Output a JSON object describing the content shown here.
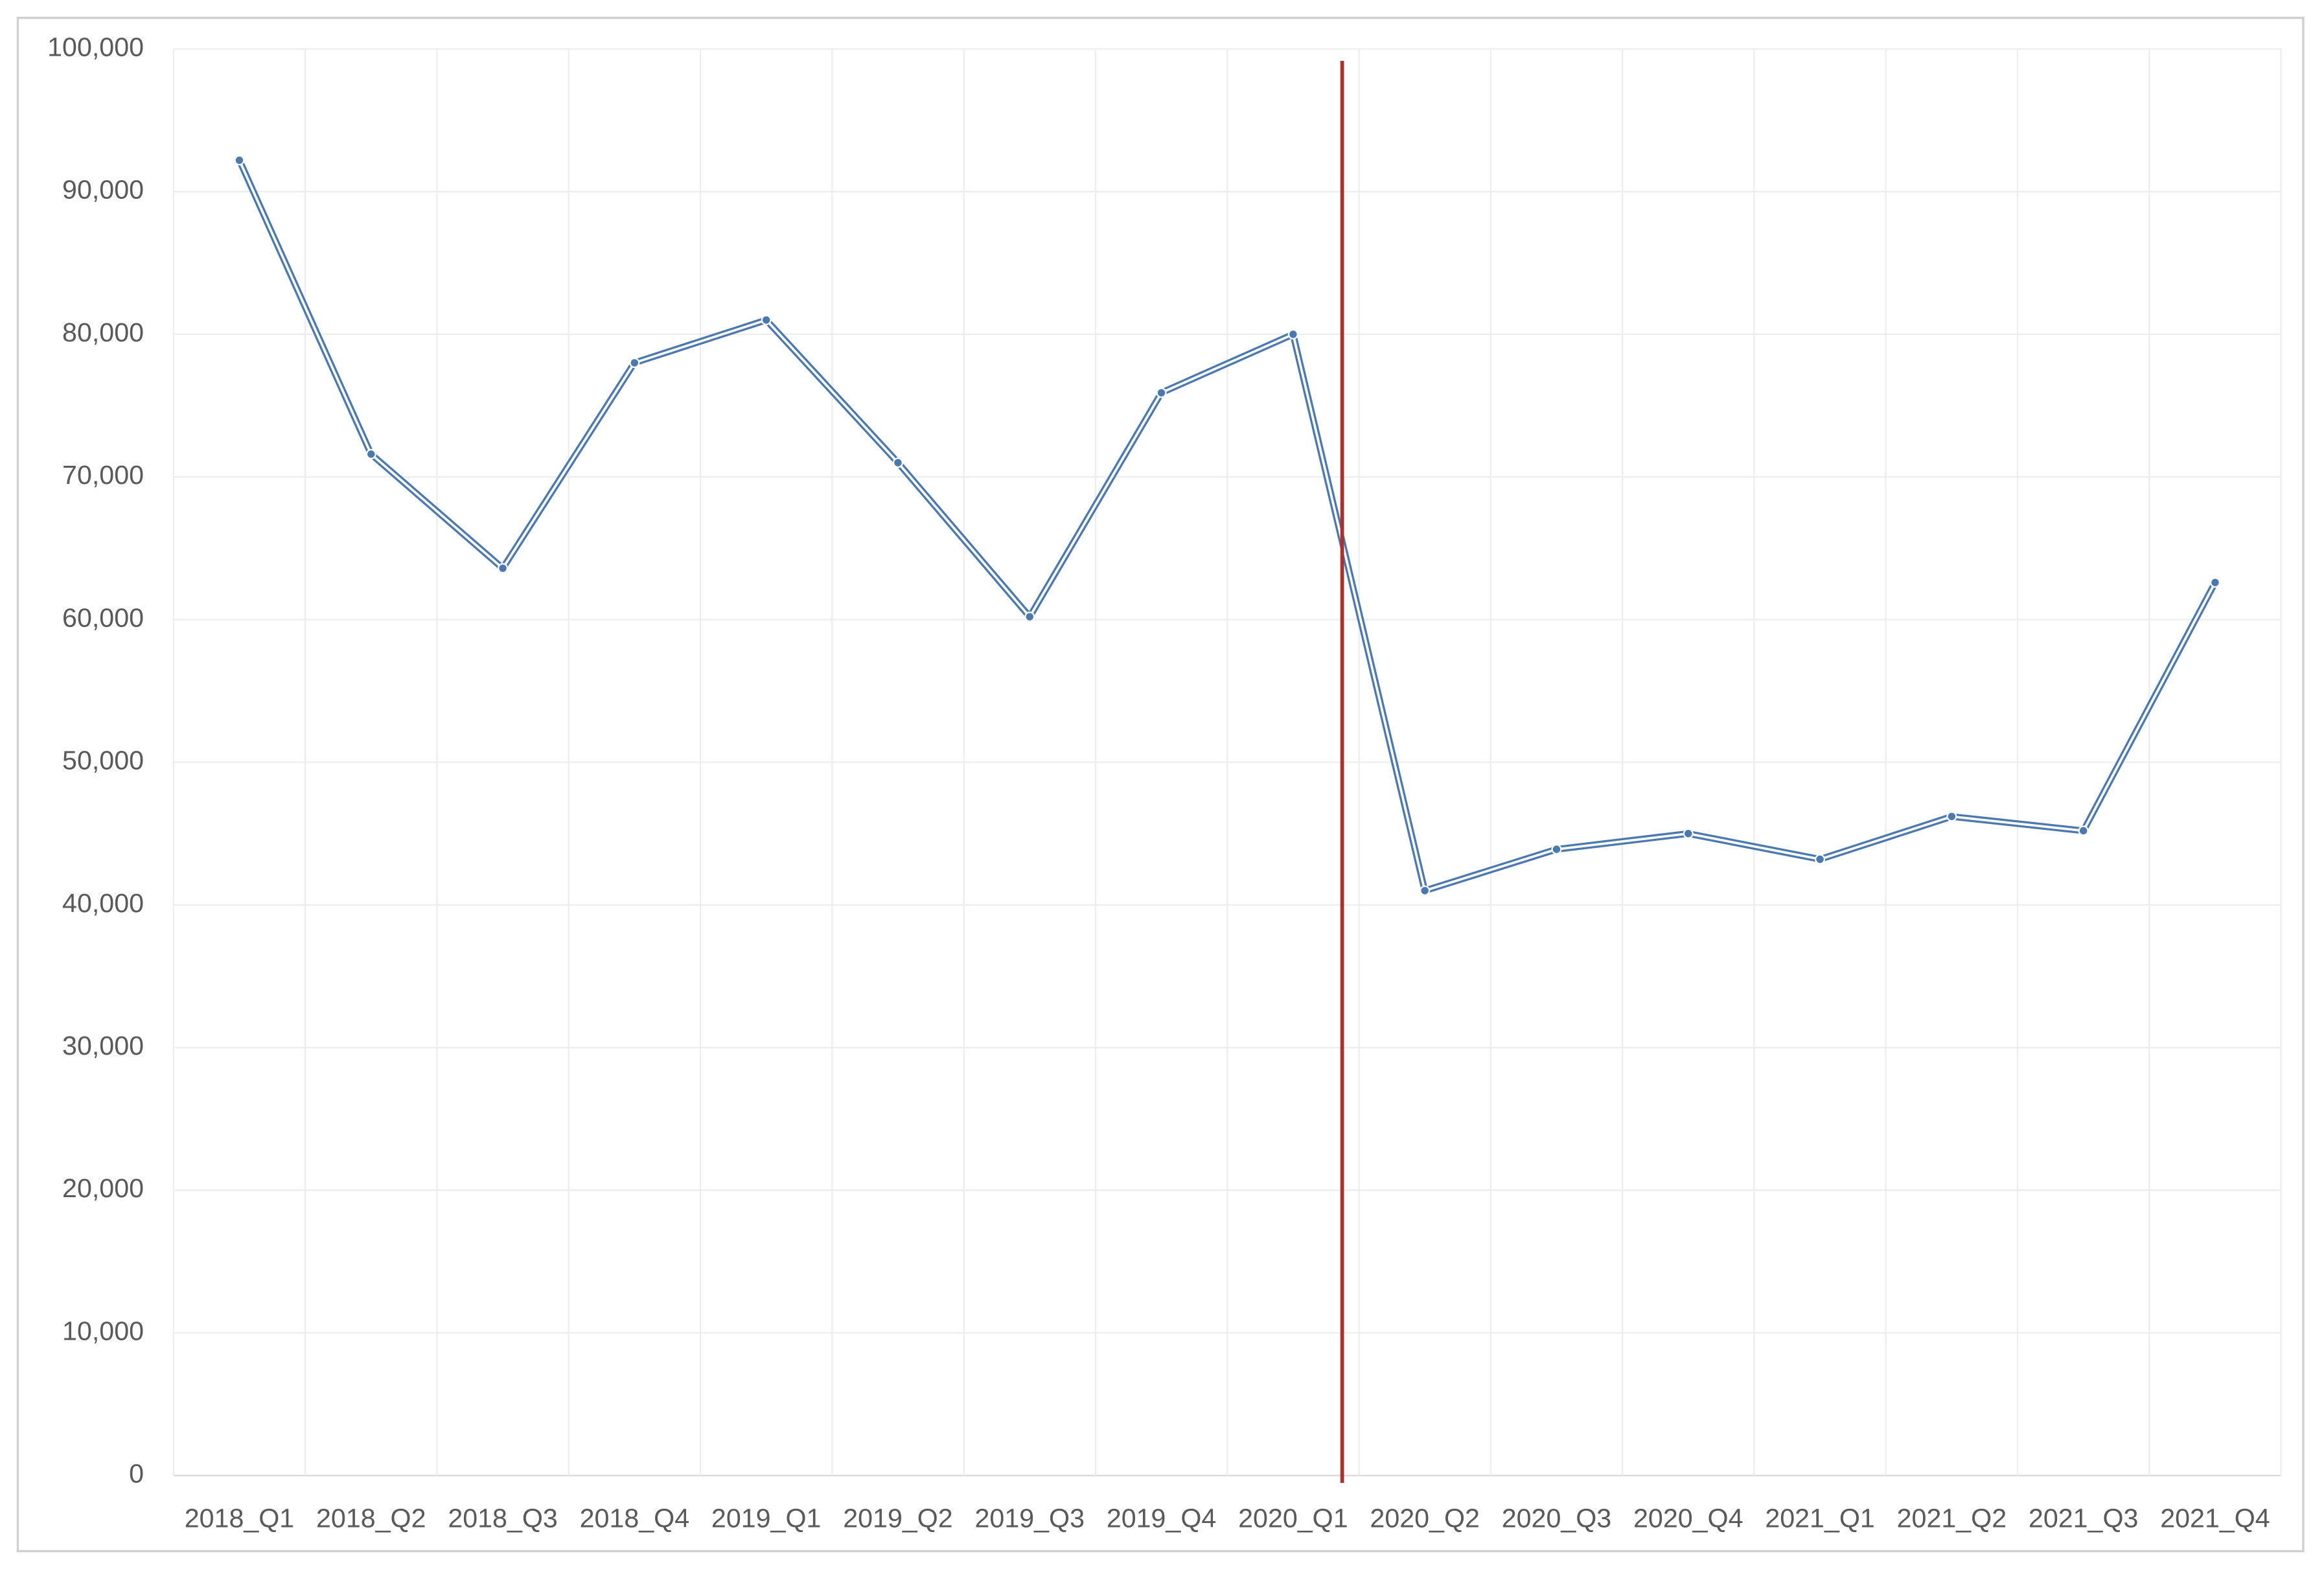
{
  "chart_data": {
    "type": "line",
    "categories": [
      "2018_Q1",
      "2018_Q2",
      "2018_Q3",
      "2018_Q4",
      "2019_Q1",
      "2019_Q2",
      "2019_Q3",
      "2019_Q4",
      "2020_Q1",
      "2020_Q2",
      "2020_Q3",
      "2020_Q4",
      "2021_Q1",
      "2021_Q2",
      "2021_Q3",
      "2021_Q4"
    ],
    "values": [
      92200,
      71600,
      63600,
      78000,
      81000,
      71000,
      60200,
      75900,
      80000,
      41000,
      43900,
      45000,
      43200,
      46200,
      45200,
      62600
    ],
    "color": "#4a78b0",
    "ylim": [
      0,
      100000
    ],
    "yticks": [
      0,
      {
        "value": 10000,
        "label": "10,000"
      },
      {
        "value": 20000,
        "label": "20,000"
      },
      {
        "value": 30000,
        "label": "30,000"
      },
      {
        "value": 40000,
        "label": "40,000"
      },
      {
        "value": 50000,
        "label": "50,000"
      },
      {
        "value": 60000,
        "label": "60,000"
      },
      {
        "value": 70000,
        "label": "70,000"
      },
      {
        "value": 80000,
        "label": "80,000"
      },
      {
        "value": 90000,
        "label": "90,000"
      },
      {
        "value": 100000,
        "label": "100,000"
      }
    ],
    "grid": true
  }
}
